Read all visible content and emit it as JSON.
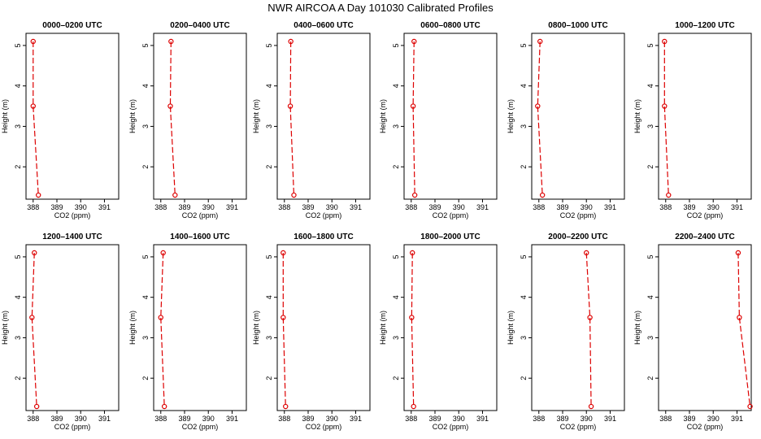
{
  "title": "NWR AIRCOA A  Day 101030  Calibrated Profiles",
  "xlabel": "CO2 (ppm)",
  "ylabel": "Height (m)",
  "colors": {
    "series": "#dd0000",
    "axis": "#000000"
  },
  "chart_data": [
    {
      "type": "line",
      "title": "0000–0200 UTC",
      "xlim": [
        387.7,
        391.6
      ],
      "ylim": [
        1.2,
        5.3
      ],
      "xticks": [
        "388",
        "389",
        "390",
        "391"
      ],
      "yticks": [
        "2",
        "3",
        "4",
        "5"
      ],
      "x": [
        388.0,
        388.0,
        388.22
      ],
      "y": [
        5.1,
        3.5,
        1.3
      ]
    },
    {
      "type": "line",
      "title": "0200–0400 UTC",
      "xlim": [
        387.7,
        391.6
      ],
      "ylim": [
        1.2,
        5.3
      ],
      "xticks": [
        "388",
        "389",
        "390",
        "391"
      ],
      "yticks": [
        "2",
        "3",
        "4",
        "5"
      ],
      "x": [
        388.43,
        388.4,
        388.6
      ],
      "y": [
        5.1,
        3.5,
        1.3
      ]
    },
    {
      "type": "line",
      "title": "0400–0600 UTC",
      "xlim": [
        387.7,
        391.6
      ],
      "ylim": [
        1.2,
        5.3
      ],
      "xticks": [
        "388",
        "389",
        "390",
        "391"
      ],
      "yticks": [
        "2",
        "3",
        "4",
        "5"
      ],
      "x": [
        388.27,
        388.25,
        388.4
      ],
      "y": [
        5.1,
        3.5,
        1.3
      ]
    },
    {
      "type": "line",
      "title": "0600–0800 UTC",
      "xlim": [
        387.7,
        391.6
      ],
      "ylim": [
        1.2,
        5.3
      ],
      "xticks": [
        "388",
        "389",
        "390",
        "391"
      ],
      "yticks": [
        "2",
        "3",
        "4",
        "5"
      ],
      "x": [
        388.12,
        388.08,
        388.15
      ],
      "y": [
        5.1,
        3.5,
        1.3
      ]
    },
    {
      "type": "line",
      "title": "0800–1000 UTC",
      "xlim": [
        387.7,
        391.6
      ],
      "ylim": [
        1.2,
        5.3
      ],
      "xticks": [
        "388",
        "389",
        "390",
        "391"
      ],
      "yticks": [
        "2",
        "3",
        "4",
        "5"
      ],
      "x": [
        388.05,
        387.95,
        388.15
      ],
      "y": [
        5.1,
        3.5,
        1.3
      ]
    },
    {
      "type": "line",
      "title": "1000–1200 UTC",
      "xlim": [
        387.7,
        391.6
      ],
      "ylim": [
        1.2,
        5.3
      ],
      "xticks": [
        "388",
        "389",
        "390",
        "391"
      ],
      "yticks": [
        "2",
        "3",
        "4",
        "5"
      ],
      "x": [
        387.95,
        387.95,
        388.12
      ],
      "y": [
        5.1,
        3.5,
        1.3
      ]
    },
    {
      "type": "line",
      "title": "1200–1400 UTC",
      "xlim": [
        387.7,
        391.6
      ],
      "ylim": [
        1.2,
        5.3
      ],
      "xticks": [
        "388",
        "389",
        "390",
        "391"
      ],
      "yticks": [
        "2",
        "3",
        "4",
        "5"
      ],
      "x": [
        388.05,
        387.95,
        388.15
      ],
      "y": [
        5.1,
        3.5,
        1.3
      ]
    },
    {
      "type": "line",
      "title": "1400–1600 UTC",
      "xlim": [
        387.7,
        391.6
      ],
      "ylim": [
        1.2,
        5.3
      ],
      "xticks": [
        "388",
        "389",
        "390",
        "391"
      ],
      "yticks": [
        "2",
        "3",
        "4",
        "5"
      ],
      "x": [
        388.1,
        388.0,
        388.15
      ],
      "y": [
        5.1,
        3.5,
        1.3
      ]
    },
    {
      "type": "line",
      "title": "1600–1800 UTC",
      "xlim": [
        387.7,
        391.6
      ],
      "ylim": [
        1.2,
        5.3
      ],
      "xticks": [
        "388",
        "389",
        "390",
        "391"
      ],
      "yticks": [
        "2",
        "3",
        "4",
        "5"
      ],
      "x": [
        387.95,
        387.95,
        388.05
      ],
      "y": [
        5.1,
        3.5,
        1.3
      ]
    },
    {
      "type": "line",
      "title": "1800–2000 UTC",
      "xlim": [
        387.7,
        391.6
      ],
      "ylim": [
        1.2,
        5.3
      ],
      "xticks": [
        "388",
        "389",
        "390",
        "391"
      ],
      "yticks": [
        "2",
        "3",
        "4",
        "5"
      ],
      "x": [
        388.05,
        388.02,
        388.1
      ],
      "y": [
        5.1,
        3.5,
        1.3
      ]
    },
    {
      "type": "line",
      "title": "2000–2200 UTC",
      "xlim": [
        387.7,
        391.6
      ],
      "ylim": [
        1.2,
        5.3
      ],
      "xticks": [
        "388",
        "389",
        "390",
        "391"
      ],
      "yticks": [
        "2",
        "3",
        "4",
        "5"
      ],
      "x": [
        390.0,
        390.15,
        390.2
      ],
      "y": [
        5.1,
        3.5,
        1.3
      ]
    },
    {
      "type": "line",
      "title": "2200–2400 UTC",
      "xlim": [
        387.7,
        391.6
      ],
      "ylim": [
        1.2,
        5.3
      ],
      "xticks": [
        "388",
        "389",
        "390",
        "391"
      ],
      "yticks": [
        "2",
        "3",
        "4",
        "5"
      ],
      "x": [
        391.05,
        391.1,
        391.55
      ],
      "y": [
        5.1,
        3.5,
        1.3
      ]
    }
  ]
}
